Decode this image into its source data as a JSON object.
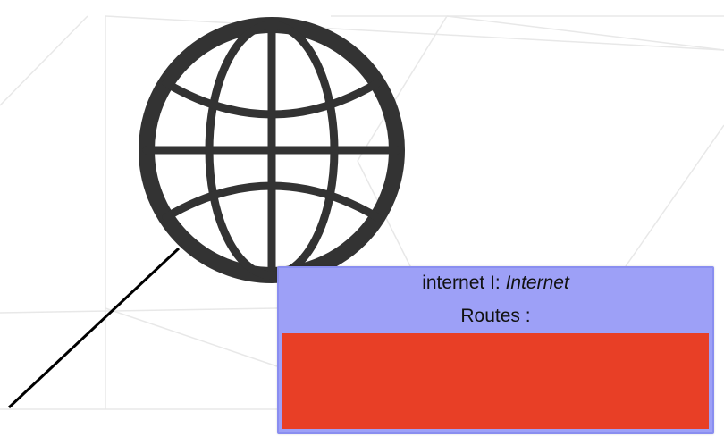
{
  "node": {
    "name": "internet I",
    "type_prefix": ": ",
    "type": "Internet",
    "routes_label": "Routes :"
  },
  "colors": {
    "header": "#9da0f7",
    "routes_panel": "#e83f26",
    "globe": "#333333",
    "connector": "#000000",
    "grid_lines": "#e8e8e8"
  },
  "icons": {
    "globe": "globe-icon"
  }
}
